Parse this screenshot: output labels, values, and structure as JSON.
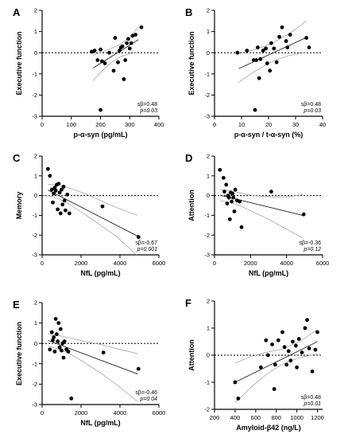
{
  "chart_data": [
    {
      "panel": "A",
      "type": "scatter",
      "xlabel": "p-α-syn (pg/mL)",
      "ylabel": "Executive function",
      "xlim": [
        0,
        400
      ],
      "ylim": [
        -3,
        2
      ],
      "xticks": [
        0,
        100,
        200,
        300,
        400
      ],
      "yticks": [
        -3,
        -2,
        -1,
        0,
        1,
        2
      ],
      "zero_line": true,
      "annotation": {
        "beta": "sβ=0.48",
        "p": "p=0.03"
      },
      "fit": {
        "x": [
          175,
          330
        ],
        "y": [
          -0.72,
          0.62
        ]
      },
      "ci_upper": {
        "x": [
          175,
          205,
          240,
          270,
          300,
          330
        ],
        "y": [
          -0.12,
          0.03,
          0.22,
          0.42,
          0.72,
          1.22
        ]
      },
      "ci_lower": {
        "x": [
          175,
          205,
          240,
          270,
          300,
          330
        ],
        "y": [
          -1.32,
          -0.85,
          -0.43,
          -0.18,
          -0.05,
          0.02
        ]
      },
      "points": [
        {
          "x": 170,
          "y": 0.05
        },
        {
          "x": 180,
          "y": 0.1
        },
        {
          "x": 190,
          "y": -0.35
        },
        {
          "x": 200,
          "y": 0.15
        },
        {
          "x": 205,
          "y": -0.4
        },
        {
          "x": 215,
          "y": -0.5
        },
        {
          "x": 230,
          "y": 0.0
        },
        {
          "x": 245,
          "y": -0.85
        },
        {
          "x": 250,
          "y": 0.7
        },
        {
          "x": 260,
          "y": -0.45
        },
        {
          "x": 265,
          "y": 0.1
        },
        {
          "x": 270,
          "y": 0.25
        },
        {
          "x": 275,
          "y": 0.3
        },
        {
          "x": 280,
          "y": -1.25
        },
        {
          "x": 285,
          "y": -0.35
        },
        {
          "x": 290,
          "y": 0.45
        },
        {
          "x": 295,
          "y": 0.65
        },
        {
          "x": 300,
          "y": 0.2
        },
        {
          "x": 305,
          "y": 0.45
        },
        {
          "x": 310,
          "y": 0.8
        },
        {
          "x": 320,
          "y": 0.85
        },
        {
          "x": 340,
          "y": 1.2
        },
        {
          "x": 200,
          "y": -2.7
        }
      ]
    },
    {
      "panel": "B",
      "type": "scatter",
      "xlabel": "p-α-syn / t-α-syn (%)",
      "ylabel": "Executive function",
      "xlim": [
        0,
        40
      ],
      "ylim": [
        -3,
        2
      ],
      "xticks": [
        0,
        10,
        20,
        30,
        40
      ],
      "yticks": [
        -3,
        -2,
        -1,
        0,
        1,
        2
      ],
      "zero_line": true,
      "annotation": {
        "beta": "sβ=0.48",
        "p": "p=0.03"
      },
      "fit": {
        "x": [
          9,
          34
        ],
        "y": [
          -0.75,
          0.72
        ]
      },
      "ci_upper": {
        "x": [
          9,
          14,
          18,
          22,
          27,
          31,
          34
        ],
        "y": [
          -0.05,
          0.12,
          0.28,
          0.5,
          0.85,
          1.2,
          1.5
        ]
      },
      "ci_lower": {
        "x": [
          9,
          14,
          18,
          22,
          27,
          31,
          34
        ],
        "y": [
          -1.4,
          -0.95,
          -0.65,
          -0.38,
          -0.15,
          -0.05,
          0.02
        ]
      },
      "points": [
        {
          "x": 8.5,
          "y": 0.0
        },
        {
          "x": 12,
          "y": 0.1
        },
        {
          "x": 14.5,
          "y": -0.35
        },
        {
          "x": 15.5,
          "y": -0.35
        },
        {
          "x": 16,
          "y": 0.25
        },
        {
          "x": 16.5,
          "y": -1.2
        },
        {
          "x": 17,
          "y": -0.3
        },
        {
          "x": 18,
          "y": 0.1
        },
        {
          "x": 19,
          "y": 0.2
        },
        {
          "x": 19.5,
          "y": -0.5
        },
        {
          "x": 20.5,
          "y": -0.85
        },
        {
          "x": 21,
          "y": 0.45
        },
        {
          "x": 22,
          "y": 0.2
        },
        {
          "x": 23,
          "y": -0.45
        },
        {
          "x": 24,
          "y": 0.75
        },
        {
          "x": 25,
          "y": 1.2
        },
        {
          "x": 26.5,
          "y": 0.55
        },
        {
          "x": 27,
          "y": 0.25
        },
        {
          "x": 28,
          "y": 0.85
        },
        {
          "x": 34,
          "y": 0.7
        },
        {
          "x": 35,
          "y": 0.25
        },
        {
          "x": 15,
          "y": -2.7
        }
      ]
    },
    {
      "panel": "C",
      "type": "scatter",
      "xlabel": "NfL (pg/mL)",
      "ylabel": "Memory",
      "xlim": [
        0,
        6000
      ],
      "ylim": [
        -3,
        2
      ],
      "xticks": [
        0,
        2000,
        4000,
        6000
      ],
      "yticks": [
        -3,
        -2,
        -1,
        0,
        1,
        2
      ],
      "zero_line": true,
      "annotation": {
        "beta": "sβ=-0.67",
        "p": "p=0.001"
      },
      "fit": {
        "x": [
          300,
          4900
        ],
        "y": [
          0.28,
          -2.05
        ]
      },
      "ci_upper": {
        "x": [
          300,
          900,
          1500,
          2200,
          3000,
          3800,
          4900
        ],
        "y": [
          0.58,
          0.52,
          0.35,
          0.1,
          -0.25,
          -0.6,
          -1.0
        ]
      },
      "ci_lower": {
        "x": [
          300,
          900,
          1500,
          2200,
          3000,
          3800,
          4900
        ],
        "y": [
          0.0,
          -0.18,
          -0.5,
          -0.95,
          -1.5,
          -2.05,
          -3.05
        ]
      },
      "points": [
        {
          "x": 300,
          "y": 1.35
        },
        {
          "x": 400,
          "y": 1.0
        },
        {
          "x": 500,
          "y": 0.3
        },
        {
          "x": 550,
          "y": -0.35
        },
        {
          "x": 600,
          "y": 0.1
        },
        {
          "x": 650,
          "y": 0.4
        },
        {
          "x": 700,
          "y": 0.25
        },
        {
          "x": 750,
          "y": 0.55
        },
        {
          "x": 800,
          "y": -0.7
        },
        {
          "x": 850,
          "y": 0.6
        },
        {
          "x": 900,
          "y": 0.15
        },
        {
          "x": 950,
          "y": -0.9
        },
        {
          "x": 1000,
          "y": 0.3
        },
        {
          "x": 1050,
          "y": -0.45
        },
        {
          "x": 1100,
          "y": 0.45
        },
        {
          "x": 1150,
          "y": -0.25
        },
        {
          "x": 1200,
          "y": -0.75
        },
        {
          "x": 1300,
          "y": 0.05
        },
        {
          "x": 1400,
          "y": -0.9
        },
        {
          "x": 3100,
          "y": -0.55
        },
        {
          "x": 4950,
          "y": -2.1
        }
      ]
    },
    {
      "panel": "D",
      "type": "scatter",
      "xlabel": "NfL (pg/mL)",
      "ylabel": "Attention",
      "xlim": [
        0,
        6000
      ],
      "ylim": [
        -3,
        2
      ],
      "xticks": [
        0,
        2000,
        4000,
        6000
      ],
      "yticks": [
        -3,
        -2,
        -1,
        0,
        1,
        2
      ],
      "zero_line": true,
      "annotation": {
        "beta": "sβ=-0.36",
        "p": "p=0.12"
      },
      "fit": {
        "x": [
          300,
          4900
        ],
        "y": [
          0.02,
          -1.0
        ]
      },
      "ci_upper": {
        "x": [
          300,
          900,
          1500,
          2200,
          3000,
          3800,
          4900
        ],
        "y": [
          0.3,
          0.25,
          0.12,
          0.0,
          -0.05,
          -0.1,
          0.05
        ]
      },
      "ci_lower": {
        "x": [
          300,
          900,
          1500,
          2200,
          3000,
          3800,
          4900
        ],
        "y": [
          -0.25,
          -0.35,
          -0.55,
          -0.85,
          -1.2,
          -1.6,
          -2.15
        ]
      },
      "points": [
        {
          "x": 300,
          "y": 1.3
        },
        {
          "x": 500,
          "y": 0.9
        },
        {
          "x": 550,
          "y": 0.2
        },
        {
          "x": 650,
          "y": 0.55
        },
        {
          "x": 700,
          "y": -0.4
        },
        {
          "x": 750,
          "y": 0.0
        },
        {
          "x": 800,
          "y": -0.1
        },
        {
          "x": 850,
          "y": -1.2
        },
        {
          "x": 900,
          "y": 0.15
        },
        {
          "x": 950,
          "y": -0.3
        },
        {
          "x": 1000,
          "y": 0.1
        },
        {
          "x": 1050,
          "y": -0.1
        },
        {
          "x": 1100,
          "y": -0.8
        },
        {
          "x": 1150,
          "y": 0.3
        },
        {
          "x": 1250,
          "y": -0.25
        },
        {
          "x": 1400,
          "y": -0.3
        },
        {
          "x": 1500,
          "y": -1.6
        },
        {
          "x": 3150,
          "y": 0.2
        },
        {
          "x": 4950,
          "y": -0.95
        }
      ]
    },
    {
      "panel": "E",
      "type": "scatter",
      "xlabel": "NfL (pg/mL)",
      "ylabel": "Executive function",
      "xlim": [
        0,
        6000
      ],
      "ylim": [
        -3,
        2
      ],
      "xticks": [
        0,
        2000,
        4000,
        6000
      ],
      "yticks": [
        -3,
        -2,
        -1,
        0,
        1,
        2
      ],
      "zero_line": true,
      "annotation": {
        "beta": "sβ=-0.46",
        "p": "p=0.04"
      },
      "fit": {
        "x": [
          300,
          4900
        ],
        "y": [
          0.15,
          -1.5
        ]
      },
      "ci_upper": {
        "x": [
          300,
          900,
          1500,
          2200,
          3000,
          3800,
          4900
        ],
        "y": [
          0.45,
          0.38,
          0.25,
          0.1,
          -0.05,
          -0.25,
          -0.5
        ]
      },
      "ci_lower": {
        "x": [
          300,
          900,
          1500,
          2200,
          3000,
          3800,
          4900
        ],
        "y": [
          -0.12,
          -0.3,
          -0.55,
          -0.95,
          -1.45,
          -2.0,
          -2.85
        ]
      },
      "points": [
        {
          "x": 400,
          "y": -0.3
        },
        {
          "x": 500,
          "y": 0.55
        },
        {
          "x": 550,
          "y": 0.15
        },
        {
          "x": 600,
          "y": 0.3
        },
        {
          "x": 650,
          "y": -0.4
        },
        {
          "x": 700,
          "y": 1.2
        },
        {
          "x": 750,
          "y": 0.45
        },
        {
          "x": 800,
          "y": 0.1
        },
        {
          "x": 850,
          "y": 1.0
        },
        {
          "x": 900,
          "y": -0.2
        },
        {
          "x": 950,
          "y": 0.7
        },
        {
          "x": 1000,
          "y": -0.35
        },
        {
          "x": 1050,
          "y": 0.0
        },
        {
          "x": 1100,
          "y": -0.7
        },
        {
          "x": 1150,
          "y": 0.1
        },
        {
          "x": 1250,
          "y": -0.3
        },
        {
          "x": 1350,
          "y": -0.4
        },
        {
          "x": 1500,
          "y": -2.7
        },
        {
          "x": 3150,
          "y": -0.45
        },
        {
          "x": 4950,
          "y": -1.25
        }
      ]
    },
    {
      "panel": "F",
      "type": "scatter",
      "xlabel": "Amyloid-β42 (ng/L)",
      "ylabel": "Attention",
      "xlim": [
        200,
        1250
      ],
      "ylim": [
        -2,
        2
      ],
      "xticks": [
        200,
        400,
        600,
        800,
        1000,
        1200
      ],
      "yticks": [
        -2,
        -1,
        0,
        1,
        2
      ],
      "zero_line": true,
      "annotation": {
        "beta": "sβ=0.48",
        "p": "p=0.01"
      },
      "fit": {
        "x": [
          400,
          1200
        ],
        "y": [
          -1.0,
          0.5
        ]
      },
      "ci_upper": {
        "x": [
          400,
          550,
          700,
          850,
          1000,
          1100,
          1200
        ],
        "y": [
          -0.3,
          -0.05,
          0.1,
          0.22,
          0.45,
          0.68,
          0.95
        ]
      },
      "ci_lower": {
        "x": [
          400,
          550,
          700,
          850,
          1000,
          1100,
          1200
        ],
        "y": [
          -1.75,
          -1.2,
          -0.72,
          -0.35,
          -0.12,
          -0.03,
          0.05
        ]
      },
      "points": [
        {
          "x": 400,
          "y": -1.0
        },
        {
          "x": 430,
          "y": -1.6
        },
        {
          "x": 650,
          "y": -0.45
        },
        {
          "x": 700,
          "y": 0.55
        },
        {
          "x": 720,
          "y": 0.0
        },
        {
          "x": 760,
          "y": 0.4
        },
        {
          "x": 780,
          "y": -1.25
        },
        {
          "x": 790,
          "y": -0.35
        },
        {
          "x": 820,
          "y": 0.55
        },
        {
          "x": 860,
          "y": 0.85
        },
        {
          "x": 880,
          "y": 0.3
        },
        {
          "x": 900,
          "y": -0.35
        },
        {
          "x": 920,
          "y": 0.15
        },
        {
          "x": 940,
          "y": -0.2
        },
        {
          "x": 960,
          "y": 0.5
        },
        {
          "x": 990,
          "y": 0.35
        },
        {
          "x": 1000,
          "y": -0.45
        },
        {
          "x": 1020,
          "y": 0.6
        },
        {
          "x": 1050,
          "y": 0.1
        },
        {
          "x": 1080,
          "y": 1.0
        },
        {
          "x": 1100,
          "y": 1.3
        },
        {
          "x": 1120,
          "y": 0.25
        },
        {
          "x": 1150,
          "y": -0.6
        },
        {
          "x": 1180,
          "y": 0.2
        },
        {
          "x": 1200,
          "y": 0.85
        }
      ]
    }
  ]
}
